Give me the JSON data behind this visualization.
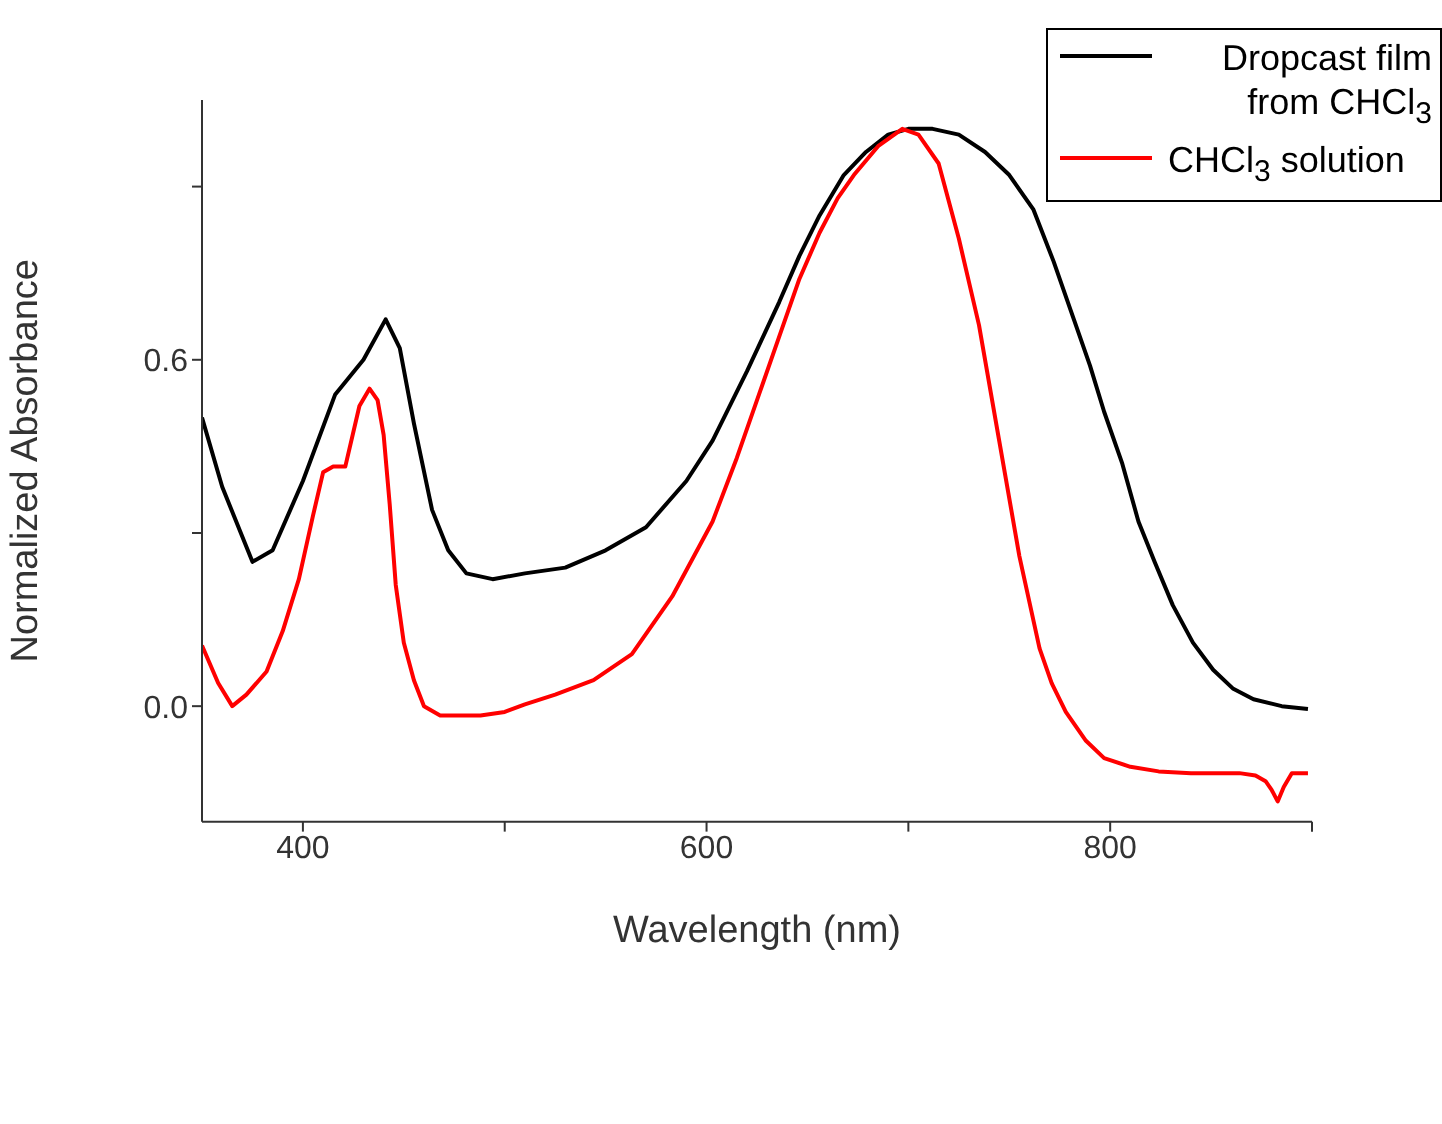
{
  "chart_data": {
    "type": "line",
    "xlabel": "Wavelength (nm)",
    "ylabel": "Normalized Absorbance",
    "xlim": [
      350,
      900
    ],
    "ylim": [
      -0.2,
      1.05
    ],
    "xticks": [
      400,
      {
        "value": 500,
        "label": null
      },
      600,
      {
        "value": 700,
        "label": null
      },
      800,
      {
        "value": 900,
        "label": null
      }
    ],
    "yticks": [
      {
        "value": 0,
        "label": "0.0"
      },
      {
        "value": 0.3,
        "label": null
      },
      {
        "value": 0.6,
        "label": "0.6"
      },
      {
        "value": 0.9,
        "label": null
      }
    ],
    "grid": false,
    "legend": "top right",
    "marker": "none",
    "line_style": "solid",
    "series": [
      {
        "name": "Dropcast film from CHCl$_{3}$",
        "color": "#000000",
        "x": [
          350,
          360,
          375,
          385,
          400,
          416,
          430,
          441,
          448,
          455,
          464,
          472,
          481,
          494,
          510,
          530,
          550,
          570,
          590,
          603,
          620,
          636,
          646,
          656,
          668,
          679,
          690,
          700,
          712,
          725,
          738,
          750,
          762,
          772,
          782,
          790,
          797,
          806,
          814,
          822,
          831,
          841,
          851,
          861,
          871,
          885,
          898
        ],
        "values": [
          0.5,
          0.38,
          0.25,
          0.27,
          0.39,
          0.54,
          0.6,
          0.67,
          0.62,
          0.49,
          0.34,
          0.27,
          0.23,
          0.22,
          0.23,
          0.24,
          0.27,
          0.31,
          0.39,
          0.46,
          0.58,
          0.7,
          0.78,
          0.85,
          0.92,
          0.96,
          0.99,
          1.0,
          1.0,
          0.99,
          0.96,
          0.92,
          0.86,
          0.77,
          0.67,
          0.59,
          0.51,
          0.42,
          0.32,
          0.25,
          0.175,
          0.11,
          0.063,
          0.03,
          0.012,
          0.0,
          -0.005
        ]
      },
      {
        "name": "CHCl$_{3}$ solution",
        "color": "#ff0000",
        "x": [
          350,
          358,
          365,
          372,
          382,
          390,
          398,
          405,
          410,
          415,
          421,
          428,
          433,
          437,
          440,
          443,
          446,
          450,
          455,
          460,
          468,
          478,
          488,
          500,
          510,
          525,
          544,
          563,
          583,
          603,
          615,
          626,
          636,
          646,
          656,
          665,
          673,
          685,
          697,
          705,
          715,
          725,
          735,
          745,
          755,
          765,
          771,
          778,
          788,
          797,
          810,
          824,
          840,
          855,
          864,
          872,
          877,
          880,
          883,
          886,
          890,
          898
        ],
        "values": [
          0.105,
          0.04,
          0.0,
          0.02,
          0.06,
          0.13,
          0.22,
          0.33,
          0.405,
          0.415,
          0.415,
          0.52,
          0.55,
          0.53,
          0.47,
          0.35,
          0.21,
          0.11,
          0.045,
          0.0,
          -0.016,
          -0.016,
          -0.016,
          -0.01,
          0.003,
          0.02,
          0.045,
          0.09,
          0.19,
          0.32,
          0.43,
          0.54,
          0.64,
          0.74,
          0.82,
          0.88,
          0.92,
          0.97,
          1.0,
          0.99,
          0.94,
          0.81,
          0.66,
          0.46,
          0.26,
          0.1,
          0.04,
          -0.01,
          -0.06,
          -0.09,
          -0.105,
          -0.113,
          -0.116,
          -0.116,
          -0.116,
          -0.12,
          -0.13,
          -0.145,
          -0.165,
          -0.14,
          -0.116,
          -0.116
        ]
      }
    ]
  }
}
